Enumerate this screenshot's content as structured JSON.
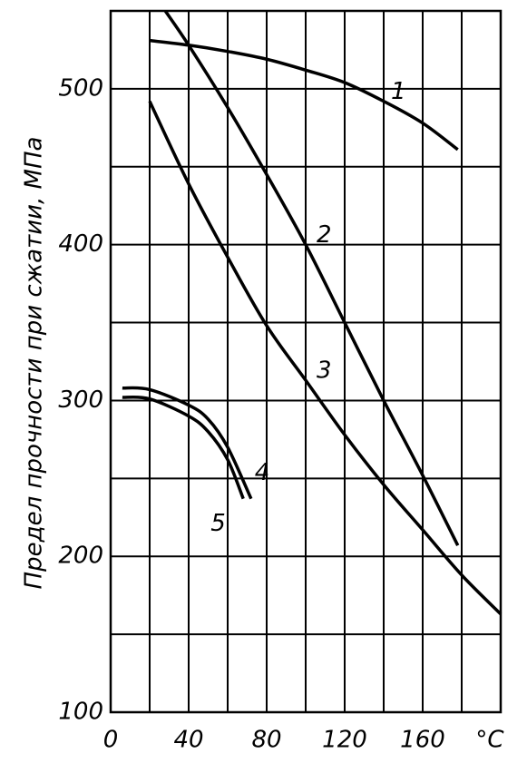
{
  "chart_data": {
    "type": "line",
    "y_label": "Предел прочности  при сжатии,  МПа",
    "x_label": "°C",
    "xlim": [
      0,
      200
    ],
    "ylim": [
      100,
      550
    ],
    "xticks": [
      0,
      40,
      80,
      120,
      160
    ],
    "yticks": [
      100,
      200,
      300,
      400,
      500
    ],
    "xgrid": [
      0,
      20,
      40,
      60,
      80,
      100,
      120,
      140,
      160,
      180,
      200
    ],
    "ygrid": [
      100,
      150,
      200,
      250,
      300,
      350,
      400,
      450,
      500,
      550
    ],
    "grid": true,
    "series": [
      {
        "name": "1",
        "color": "#000000",
        "x": [
          20,
          40,
          60,
          80,
          100,
          120,
          140,
          160,
          178
        ],
        "values": [
          531,
          528,
          524,
          519,
          512,
          504,
          492,
          478,
          461
        ]
      },
      {
        "name": "2",
        "color": "#000000",
        "x": [
          28,
          40,
          60,
          80,
          100,
          120,
          140,
          160,
          178
        ],
        "values": [
          550,
          528,
          488,
          445,
          400,
          350,
          300,
          252,
          207
        ]
      },
      {
        "name": "3",
        "color": "#000000",
        "x": [
          20,
          40,
          60,
          80,
          100,
          120,
          140,
          160,
          180,
          200
        ],
        "values": [
          492,
          439,
          392,
          348,
          313,
          278,
          246,
          217,
          188,
          163
        ]
      },
      {
        "name": "4",
        "color": "#000000",
        "x": [
          6,
          20,
          40,
          50,
          60,
          72
        ],
        "values": [
          308,
          307,
          297,
          288,
          270,
          237
        ]
      },
      {
        "name": "5",
        "color": "#000000",
        "x": [
          6,
          20,
          40,
          50,
          60,
          68
        ],
        "values": [
          302,
          301,
          290,
          280,
          262,
          237
        ]
      }
    ]
  }
}
